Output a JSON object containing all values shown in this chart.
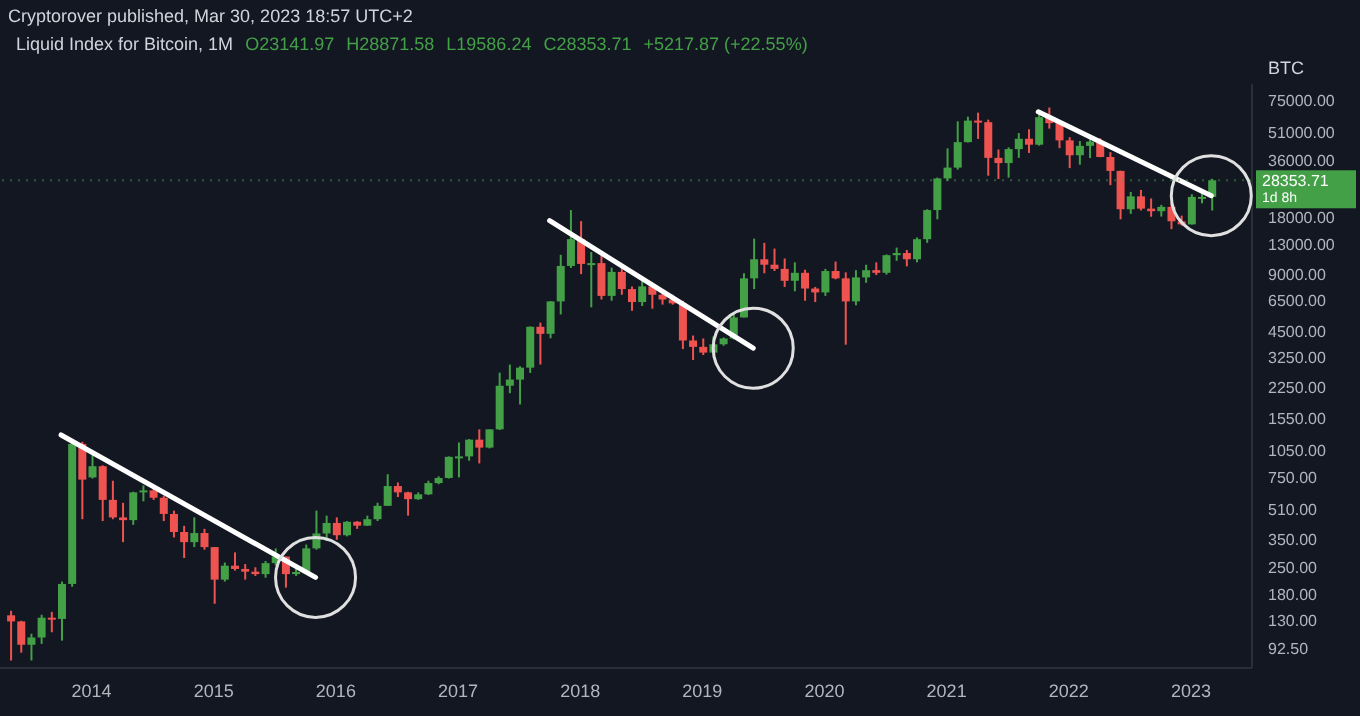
{
  "chart_data": {
    "type": "candlestick",
    "title": "Cryptorover published, Mar 30, 2023 18:57 UTC+2",
    "subtitle": "Liquid Index for Bitcoin, 1M",
    "annotations": [
      "O23141.97",
      "H28871.58",
      "L19586.24",
      "C28353.71",
      "+5217.87 (+22.55%)"
    ],
    "ylabel": "BTC",
    "log": true,
    "grid": false,
    "legend": false,
    "line_style": "solid",
    "x": [
      "2013-05",
      "2013-06",
      "2013-07",
      "2013-08",
      "2013-09",
      "2013-10",
      "2013-11",
      "2013-12",
      "2014-01",
      "2014-02",
      "2014-03",
      "2014-04",
      "2014-05",
      "2014-06",
      "2014-07",
      "2014-08",
      "2014-09",
      "2014-10",
      "2014-11",
      "2014-12",
      "2015-01",
      "2015-02",
      "2015-03",
      "2015-04",
      "2015-05",
      "2015-06",
      "2015-07",
      "2015-08",
      "2015-09",
      "2015-10",
      "2015-11",
      "2015-12",
      "2016-01",
      "2016-02",
      "2016-03",
      "2016-04",
      "2016-05",
      "2016-06",
      "2016-07",
      "2016-08",
      "2016-09",
      "2016-10",
      "2016-11",
      "2016-12",
      "2017-01",
      "2017-02",
      "2017-03",
      "2017-04",
      "2017-05",
      "2017-06",
      "2017-07",
      "2017-08",
      "2017-09",
      "2017-10",
      "2017-11",
      "2017-12",
      "2018-01",
      "2018-02",
      "2018-03",
      "2018-04",
      "2018-05",
      "2018-06",
      "2018-07",
      "2018-08",
      "2018-09",
      "2018-10",
      "2018-11",
      "2018-12",
      "2019-01",
      "2019-02",
      "2019-03",
      "2019-04",
      "2019-05",
      "2019-06",
      "2019-07",
      "2019-08",
      "2019-09",
      "2019-10",
      "2019-11",
      "2019-12",
      "2020-01",
      "2020-02",
      "2020-03",
      "2020-04",
      "2020-05",
      "2020-06",
      "2020-07",
      "2020-08",
      "2020-09",
      "2020-10",
      "2020-11",
      "2020-12",
      "2021-01",
      "2021-02",
      "2021-03",
      "2021-04",
      "2021-05",
      "2021-06",
      "2021-07",
      "2021-08",
      "2021-09",
      "2021-10",
      "2021-11",
      "2021-12",
      "2022-01",
      "2022-02",
      "2022-03",
      "2022-04",
      "2022-05",
      "2022-06",
      "2022-07",
      "2022-08",
      "2022-09",
      "2022-10",
      "2022-11",
      "2022-12",
      "2023-01",
      "2023-02",
      "2023-03"
    ],
    "ohlc": [
      [
        139,
        147,
        80,
        129
      ],
      [
        129,
        130,
        88,
        97
      ],
      [
        97,
        111,
        80,
        106
      ],
      [
        106,
        140,
        98,
        135
      ],
      [
        135,
        145,
        113,
        133
      ],
      [
        133,
        210,
        102,
        204
      ],
      [
        204,
        1165,
        197,
        1130
      ],
      [
        1130,
        1160,
        450,
        730
      ],
      [
        750,
        1000,
        740,
        860
      ],
      [
        860,
        870,
        440,
        570
      ],
      [
        570,
        720,
        450,
        460
      ],
      [
        460,
        550,
        340,
        445
      ],
      [
        445,
        630,
        420,
        625
      ],
      [
        625,
        680,
        560,
        640
      ],
      [
        640,
        660,
        570,
        585
      ],
      [
        585,
        600,
        440,
        480
      ],
      [
        480,
        500,
        360,
        385
      ],
      [
        385,
        415,
        280,
        340
      ],
      [
        340,
        460,
        320,
        380
      ],
      [
        380,
        400,
        310,
        320
      ],
      [
        320,
        320,
        160,
        215
      ],
      [
        215,
        265,
        210,
        255
      ],
      [
        255,
        300,
        240,
        245
      ],
      [
        245,
        260,
        215,
        237
      ],
      [
        237,
        250,
        225,
        230
      ],
      [
        230,
        270,
        220,
        263
      ],
      [
        263,
        315,
        255,
        285
      ],
      [
        285,
        285,
        195,
        230
      ],
      [
        230,
        245,
        225,
        236
      ],
      [
        236,
        330,
        235,
        315
      ],
      [
        315,
        500,
        310,
        378
      ],
      [
        378,
        470,
        345,
        430
      ],
      [
        430,
        460,
        350,
        370
      ],
      [
        370,
        440,
        365,
        436
      ],
      [
        436,
        440,
        400,
        416
      ],
      [
        416,
        470,
        415,
        450
      ],
      [
        450,
        550,
        440,
        530
      ],
      [
        530,
        780,
        530,
        675
      ],
      [
        675,
        705,
        590,
        625
      ],
      [
        625,
        630,
        470,
        575
      ],
      [
        575,
        625,
        570,
        610
      ],
      [
        610,
        720,
        605,
        700
      ],
      [
        700,
        760,
        690,
        745
      ],
      [
        745,
        970,
        740,
        965
      ],
      [
        965,
        1150,
        750,
        970
      ],
      [
        970,
        1200,
        920,
        1190
      ],
      [
        1190,
        1350,
        890,
        1080
      ],
      [
        1080,
        1350,
        1070,
        1350
      ],
      [
        1350,
        2700,
        1340,
        2300
      ],
      [
        2300,
        2980,
        2100,
        2480
      ],
      [
        2480,
        2920,
        1830,
        2870
      ],
      [
        2870,
        4750,
        2690,
        4730
      ],
      [
        4730,
        4980,
        2980,
        4340
      ],
      [
        4340,
        6470,
        4110,
        6450
      ],
      [
        6450,
        11400,
        5500,
        9950
      ],
      [
        9950,
        19700,
        9700,
        13800
      ],
      [
        13800,
        17200,
        9000,
        10200
      ],
      [
        10200,
        11800,
        6000,
        10300
      ],
      [
        10300,
        11700,
        6600,
        6900
      ],
      [
        6900,
        9750,
        6500,
        9250
      ],
      [
        9250,
        10000,
        7000,
        7500
      ],
      [
        7500,
        7750,
        5750,
        6400
      ],
      [
        6400,
        8500,
        6100,
        7750
      ],
      [
        7750,
        7750,
        5900,
        7000
      ],
      [
        7000,
        7400,
        6200,
        6600
      ],
      [
        6600,
        7000,
        6200,
        6300
      ],
      [
        6300,
        6500,
        3600,
        4000
      ],
      [
        4000,
        4250,
        3150,
        3700
      ],
      [
        3700,
        4100,
        3350,
        3450
      ],
      [
        3450,
        4200,
        3350,
        3820
      ],
      [
        3820,
        4150,
        3750,
        4100
      ],
      [
        4100,
        5600,
        4050,
        5300
      ],
      [
        5300,
        9100,
        5300,
        8550
      ],
      [
        8550,
        13900,
        7500,
        10800
      ],
      [
        10800,
        13200,
        9100,
        10100
      ],
      [
        10100,
        12300,
        9350,
        9600
      ],
      [
        9600,
        10900,
        7700,
        8300
      ],
      [
        8300,
        10400,
        7300,
        9150
      ],
      [
        9150,
        9500,
        6500,
        7550
      ],
      [
        7550,
        7700,
        6400,
        7200
      ],
      [
        7200,
        9600,
        6900,
        9350
      ],
      [
        9350,
        10500,
        8450,
        8550
      ],
      [
        8550,
        9200,
        3800,
        6450
      ],
      [
        6450,
        9450,
        6150,
        8650
      ],
      [
        8650,
        10100,
        8100,
        9450
      ],
      [
        9450,
        10400,
        8900,
        9150
      ],
      [
        9150,
        11450,
        8950,
        11350
      ],
      [
        11350,
        12450,
        10600,
        11650
      ],
      [
        11650,
        12100,
        9900,
        10800
      ],
      [
        10800,
        14100,
        10400,
        13800
      ],
      [
        13800,
        19900,
        13200,
        19700
      ],
      [
        19700,
        29300,
        17600,
        29000
      ],
      [
        29000,
        41900,
        28100,
        33100
      ],
      [
        33100,
        58300,
        32300,
        45200
      ],
      [
        45200,
        61700,
        45000,
        58800
      ],
      [
        58800,
        64800,
        47000,
        57700
      ],
      [
        57700,
        59500,
        30000,
        37300
      ],
      [
        37300,
        41300,
        28800,
        35000
      ],
      [
        35000,
        42400,
        29300,
        41500
      ],
      [
        41500,
        50500,
        37300,
        47100
      ],
      [
        47100,
        52900,
        39600,
        43800
      ],
      [
        43800,
        67000,
        43300,
        61300
      ],
      [
        61300,
        69000,
        53300,
        57000
      ],
      [
        57000,
        59100,
        42000,
        46200
      ],
      [
        46200,
        48000,
        32900,
        38500
      ],
      [
        38500,
        45800,
        34300,
        43200
      ],
      [
        43200,
        48200,
        37200,
        45500
      ],
      [
        45500,
        47400,
        37600,
        37700
      ],
      [
        37700,
        40000,
        26700,
        31800
      ],
      [
        31800,
        31900,
        17600,
        19900
      ],
      [
        19900,
        24600,
        18800,
        23300
      ],
      [
        23300,
        25200,
        19600,
        20050
      ],
      [
        20050,
        22700,
        18150,
        19430
      ],
      [
        19430,
        21000,
        18200,
        20490
      ],
      [
        20490,
        21450,
        15600,
        17170
      ],
      [
        17170,
        18400,
        16300,
        16540
      ],
      [
        16540,
        23900,
        16500,
        23140
      ],
      [
        23140,
        25250,
        21400,
        23140
      ],
      [
        23141.97,
        28871.58,
        19586.24,
        28353.71
      ]
    ],
    "colors": [
      "#ef5350",
      "#ef5350",
      "#43a047",
      "#43a047",
      "#ef5350",
      "#43a047",
      "#43a047",
      "#ef5350",
      "#43a047",
      "#ef5350",
      "#ef5350",
      "#ef5350",
      "#43a047",
      "#43a047",
      "#ef5350",
      "#ef5350",
      "#ef5350",
      "#ef5350",
      "#43a047",
      "#ef5350",
      "#ef5350",
      "#43a047",
      "#ef5350",
      "#ef5350",
      "#ef5350",
      "#43a047",
      "#43a047",
      "#ef5350",
      "#43a047",
      "#43a047",
      "#43a047",
      "#43a047",
      "#ef5350",
      "#43a047",
      "#ef5350",
      "#43a047",
      "#43a047",
      "#43a047",
      "#ef5350",
      "#ef5350",
      "#43a047",
      "#43a047",
      "#43a047",
      "#43a047",
      "#43a047",
      "#43a047",
      "#ef5350",
      "#43a047",
      "#43a047",
      "#43a047",
      "#43a047",
      "#43a047",
      "#ef5350",
      "#43a047",
      "#43a047",
      "#43a047",
      "#ef5350",
      "#43a047",
      "#ef5350",
      "#43a047",
      "#ef5350",
      "#ef5350",
      "#43a047",
      "#ef5350",
      "#ef5350",
      "#ef5350",
      "#ef5350",
      "#ef5350",
      "#ef5350",
      "#43a047",
      "#43a047",
      "#43a047",
      "#43a047",
      "#43a047",
      "#ef5350",
      "#ef5350",
      "#ef5350",
      "#43a047",
      "#ef5350",
      "#ef5350",
      "#43a047",
      "#ef5350",
      "#ef5350",
      "#43a047",
      "#43a047",
      "#ef5350",
      "#43a047",
      "#43a047",
      "#ef5350",
      "#43a047",
      "#43a047",
      "#43a047",
      "#43a047",
      "#43a047",
      "#43a047",
      "#ef5350",
      "#ef5350",
      "#ef5350",
      "#43a047",
      "#43a047",
      "#ef5350",
      "#43a047",
      "#ef5350",
      "#ef5350",
      "#ef5350",
      "#43a047",
      "#43a047",
      "#ef5350",
      "#ef5350",
      "#ef5350",
      "#43a047",
      "#ef5350",
      "#ef5350",
      "#43a047",
      "#ef5350",
      "#ef5350",
      "#43a047",
      "#43a047",
      "#43a047"
    ],
    "series": [
      {
        "type": "line",
        "color": "#ffffff",
        "x": [
          "2013-10",
          "2015-11"
        ],
        "values": [
          1260,
          221
        ]
      },
      {
        "type": "line",
        "color": "#ffffff",
        "x": [
          "2017-10",
          "2019-06"
        ],
        "values": [
          17300,
          3640
        ]
      },
      {
        "type": "line",
        "color": "#ffffff",
        "x": [
          "2021-10",
          "2023-03"
        ],
        "values": [
          65500,
          23500
        ]
      }
    ],
    "ref_lines": [
      {
        "axis": "y",
        "value": 28353.71,
        "label": "28353.71\n1d 8h",
        "color": "#43a047",
        "line_style": "dotted"
      }
    ],
    "xlim": [
      "2013-04",
      "2023-07"
    ],
    "xticks": [
      "2014",
      "2015",
      "2016",
      "2017",
      "2018",
      "2019",
      "2020",
      "2021",
      "2022",
      "2023"
    ],
    "ylim": [
      73,
      92000
    ],
    "yticks": [
      {
        "value": 92.5,
        "label": "92.50"
      },
      {
        "value": 130,
        "label": "130.00"
      },
      {
        "value": 180,
        "label": "180.00"
      },
      {
        "value": 250,
        "label": "250.00"
      },
      {
        "value": 350,
        "label": "350.00"
      },
      {
        "value": 510,
        "label": "510.00"
      },
      {
        "value": 750,
        "label": "750.00"
      },
      {
        "value": 1050,
        "label": "1050.00"
      },
      {
        "value": 1550,
        "label": "1550.00"
      },
      {
        "value": 2250,
        "label": "2250.00"
      },
      {
        "value": 3250,
        "label": "3250.00"
      },
      {
        "value": 4500,
        "label": "4500.00"
      },
      {
        "value": 6500,
        "label": "6500.00"
      },
      {
        "value": 9000,
        "label": "9000.00"
      },
      {
        "value": 13000,
        "label": "13000.00"
      },
      {
        "value": 18000,
        "label": "18000.00"
      },
      {
        "value": 36000,
        "label": "36000.00"
      },
      {
        "value": 51000,
        "label": "51000.00"
      },
      {
        "value": 75000,
        "label": "75000.00"
      }
    ]
  }
}
